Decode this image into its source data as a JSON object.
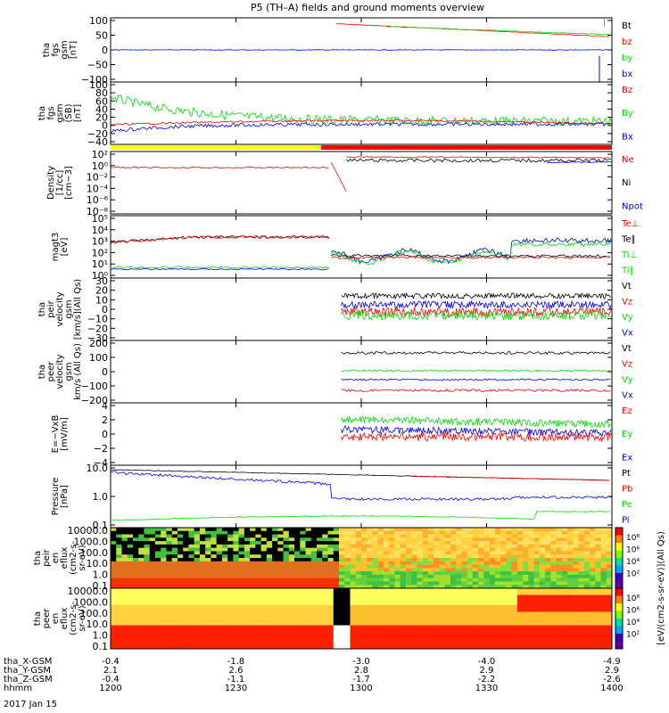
{
  "title": "P5 (TH–A) fields and ground moments overview",
  "date_label": "2017 Jan 15",
  "colors": {
    "black": "#000000",
    "red": "#ff0000",
    "green": "#00e000",
    "blue": "#0000ff",
    "yellow": "#ffff00"
  },
  "chart_data": [
    {
      "type": "line",
      "ylabel": [
        "tha",
        "fgs",
        "gsm",
        "[nT]"
      ],
      "yticks": [
        "100",
        "50",
        "0",
        "−50",
        "−100"
      ],
      "ylim": [
        -100,
        100
      ],
      "series": [
        {
          "name": "Bt"
        },
        {
          "name": "bz"
        },
        {
          "name": "by"
        },
        {
          "name": "bx"
        }
      ]
    },
    {
      "type": "line",
      "ylabel": [
        "tha",
        "fgs",
        "gsm",
        "(SB)",
        "[nT]"
      ],
      "yticks": [
        "100",
        "80",
        "60",
        "40",
        "20",
        "0",
        "−20",
        "−40"
      ],
      "ylim": [
        -40,
        100
      ],
      "series": [
        {
          "name": "Bz"
        },
        {
          "name": "By"
        },
        {
          "name": "Bx"
        }
      ]
    },
    {
      "type": "line",
      "ylabel": [
        "Density",
        "[1/cc]",
        "[cm−3]"
      ],
      "yticks": [
        "10²",
        "10⁰",
        "10⁻²",
        "10⁻⁴",
        "10⁻⁶",
        "10⁻⁸"
      ],
      "log": true,
      "series": [
        {
          "name": "Ne"
        },
        {
          "name": "Ni"
        },
        {
          "name": "Npot"
        }
      ]
    },
    {
      "type": "line",
      "ylabel": [
        "magt3",
        "[eV]"
      ],
      "yticks": [
        "10⁵",
        "10⁴",
        "10³",
        "10²",
        "10¹",
        "10⁰"
      ],
      "log": true,
      "series": [
        {
          "name": "Te⊥"
        },
        {
          "name": "Te∥"
        },
        {
          "name": "Ti⊥"
        },
        {
          "name": "Ti∥"
        }
      ]
    },
    {
      "type": "line",
      "ylabel": [
        "tha",
        "peir",
        "velocity",
        "gsm",
        "[km/s](All Qs)"
      ],
      "yticks": [
        "30",
        "20",
        "10",
        "0",
        "−10",
        "−20",
        "−30"
      ],
      "ylim": [
        -30,
        30
      ],
      "series": [
        {
          "name": "Vt"
        },
        {
          "name": "Vz"
        },
        {
          "name": "Vy"
        },
        {
          "name": "Vx"
        }
      ]
    },
    {
      "type": "line",
      "ylabel": [
        "tha",
        "peer",
        "velocity",
        "gsm",
        "km/s (All Qs)"
      ],
      "yticks": [
        "200",
        "100",
        "0",
        "−100",
        "−200"
      ],
      "ylim": [
        -200,
        200
      ],
      "series": [
        {
          "name": "Vt"
        },
        {
          "name": "Vz"
        },
        {
          "name": "Vy"
        },
        {
          "name": "Vx"
        }
      ]
    },
    {
      "type": "line",
      "ylabel": [
        "E=−VxB",
        "[mV/m]"
      ],
      "yticks": [
        "4",
        "2",
        "0",
        "−2",
        "−4"
      ],
      "ylim": [
        -4,
        4
      ],
      "series": [
        {
          "name": "Ez"
        },
        {
          "name": "Ey"
        },
        {
          "name": "Ex"
        }
      ]
    },
    {
      "type": "line",
      "ylabel": [
        "Pressure",
        "[nPa]"
      ],
      "yticks": [
        "10.0",
        "1.0",
        "0.1"
      ],
      "log": true,
      "series": [
        {
          "name": "Pt"
        },
        {
          "name": "Pb"
        },
        {
          "name": "Pe"
        },
        {
          "name": "Pi"
        }
      ]
    },
    {
      "type": "heatmap",
      "ylabel": [
        "tha",
        "peir",
        "en",
        "eflux",
        "(cm2-s-",
        "sr-eV)"
      ],
      "yticks": [
        "10000.0",
        "1000.0",
        "100.0",
        "10.0",
        "1.0",
        "0.1"
      ],
      "colorbar": [
        "10⁸",
        "10⁶",
        "10⁴",
        "10²"
      ],
      "colorbar_label": "[eV/(cm2-s-sr-eV)](All Qs)"
    },
    {
      "type": "heatmap",
      "ylabel": [
        "tha",
        "peer",
        "en",
        "eflux",
        "(cm2-s-",
        "sr-eV)"
      ],
      "yticks": [
        "10000.0",
        "1000.0",
        "100.0",
        "10.0",
        "1.0",
        "0.1"
      ],
      "colorbar": [
        "10⁸",
        "10⁶",
        "10⁴",
        "10²"
      ],
      "colorbar_label": "[eV/(cm2-s-sr-eV)]"
    }
  ],
  "xaxis": {
    "rows": [
      {
        "label": "tha_X-GSM",
        "values": [
          "-0.4",
          "-1.8",
          "-3.0",
          "-4.0",
          "-4.9"
        ]
      },
      {
        "label": "tha_Y-GSM",
        "values": [
          "2.1",
          "2.6",
          "2.8",
          "2.9",
          "2.9"
        ]
      },
      {
        "label": "tha_Z-GSM",
        "values": [
          "-0.4",
          "-1.1",
          "-1.7",
          "-2.2",
          "-2.6"
        ]
      },
      {
        "label": "hhmm",
        "values": [
          "1200",
          "1230",
          "1300",
          "1330",
          "1400"
        ]
      }
    ]
  }
}
